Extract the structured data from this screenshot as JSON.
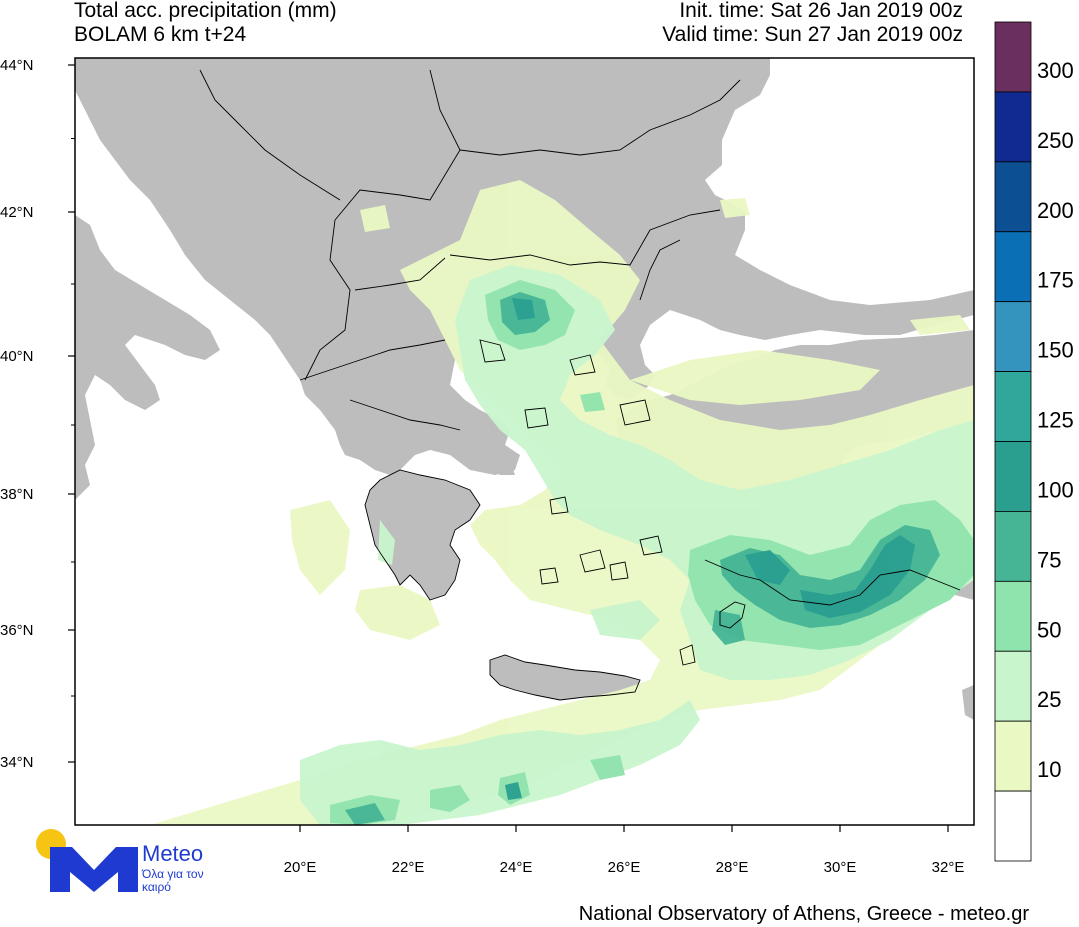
{
  "header": {
    "title_line1": "Total acc. precipitation (mm)",
    "title_line2": "BOLAM 6 km t+24",
    "init_time": "Init. time: Sat 26 Jan 2019 00z",
    "valid_time": "Valid time: Sun 27 Jan 2019 00z"
  },
  "axes": {
    "lat_labels": [
      "44°N",
      "42°N",
      "40°N",
      "38°N",
      "36°N",
      "34°N"
    ],
    "lon_labels": [
      "20°E",
      "22°E",
      "24°E",
      "26°E",
      "28°E",
      "30°E",
      "32°E"
    ]
  },
  "colorbar": {
    "labels": [
      "300",
      "250",
      "200",
      "175",
      "150",
      "125",
      "100",
      "75",
      "50",
      "25",
      "10"
    ],
    "colors": [
      "#6a2f5e",
      "#102a92",
      "#0c5093",
      "#0b6fb5",
      "#3494bd",
      "#2fa89b",
      "#2a9f90",
      "#46b595",
      "#8fe3ad",
      "#c9f5cd",
      "#eaf8c4",
      "#ffffff"
    ]
  },
  "map_colors": {
    "land": "#bdbdbd",
    "sea": "#ffffff",
    "border": "#000000"
  },
  "logo": {
    "name": "Meteo",
    "tagline": "Όλα για τον καιρό"
  },
  "footer": {
    "credit": "National Observatory of Athens, Greece - meteo.gr"
  }
}
